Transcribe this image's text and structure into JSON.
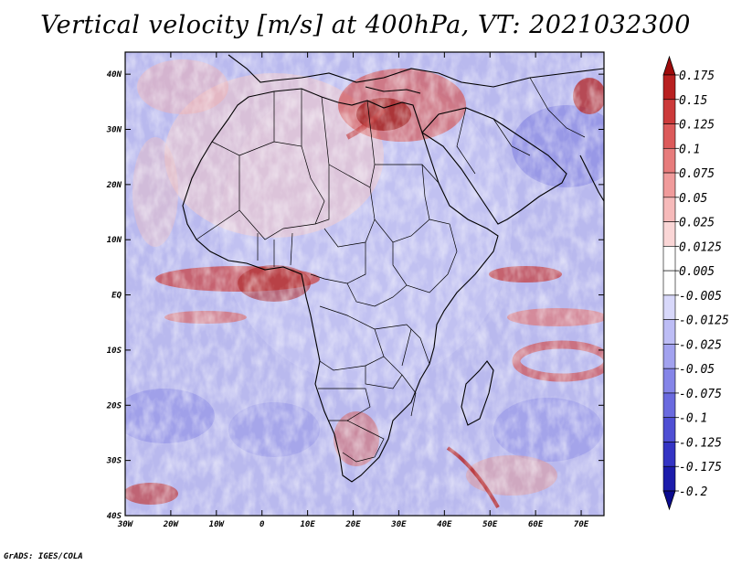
{
  "title": "Vertical velocity [m/s] at 400hPa, VT: 2021032300",
  "credit": "GrADS: IGES/COLA",
  "map": {
    "lat_labels": [
      "40N",
      "30N",
      "20N",
      "10N",
      "EQ",
      "10S",
      "20S",
      "30S",
      "40S"
    ],
    "lon_labels": [
      "30W",
      "20W",
      "10W",
      "0",
      "10E",
      "20E",
      "30E",
      "40E",
      "50E",
      "60E",
      "70E"
    ],
    "lat_range": [
      -40,
      44
    ],
    "lon_range": [
      -30,
      75
    ]
  },
  "colorbar": {
    "labels": [
      "0.175",
      "0.15",
      "0.125",
      "0.1",
      "0.075",
      "0.05",
      "0.025",
      "0.0125",
      "0.005",
      "-0.005",
      "-0.0125",
      "-0.025",
      "-0.05",
      "-0.075",
      "-0.1",
      "-0.125",
      "-0.175",
      "-0.2"
    ],
    "colors": [
      "#9e0b0b",
      "#b82020",
      "#cc3a3a",
      "#dc5a5a",
      "#e77c7c",
      "#f09b9b",
      "#f6baba",
      "#fad6d6",
      "#ffffff",
      "#ffffff",
      "#d8d8fa",
      "#bdbdf5",
      "#a2a2ef",
      "#8585e8",
      "#6a6adf",
      "#4f4fd4",
      "#3434c4",
      "#1c1cab",
      "#0b0b8e"
    ]
  }
}
